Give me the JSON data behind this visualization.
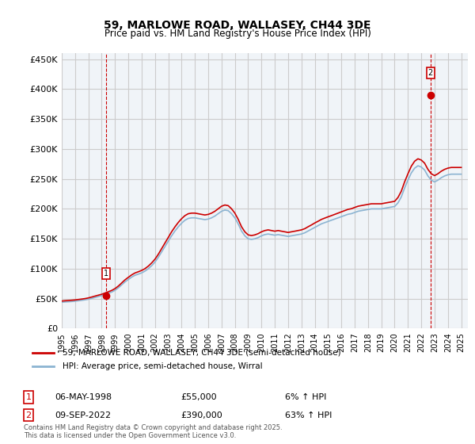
{
  "title": "59, MARLOWE ROAD, WALLASEY, CH44 3DE",
  "subtitle": "Price paid vs. HM Land Registry's House Price Index (HPI)",
  "xlabel": "",
  "ylabel": "",
  "ylim": [
    0,
    460000
  ],
  "xlim_start": 1995.0,
  "xlim_end": 2025.5,
  "yticks": [
    0,
    50000,
    100000,
    150000,
    200000,
    250000,
    300000,
    350000,
    400000,
    450000
  ],
  "ytick_labels": [
    "£0",
    "£50K",
    "£100K",
    "£150K",
    "£200K",
    "£250K",
    "£300K",
    "£350K",
    "£400K",
    "£450K"
  ],
  "xticks": [
    1995,
    1996,
    1997,
    1998,
    1999,
    2000,
    2001,
    2002,
    2003,
    2004,
    2005,
    2006,
    2007,
    2008,
    2009,
    2010,
    2011,
    2012,
    2013,
    2014,
    2015,
    2016,
    2017,
    2018,
    2019,
    2020,
    2021,
    2022,
    2023,
    2024,
    2025
  ],
  "sale1_x": 1998.35,
  "sale1_y": 55000,
  "sale1_label": "1",
  "sale2_x": 2022.69,
  "sale2_y": 390000,
  "sale2_label": "2",
  "line_color_red": "#cc0000",
  "line_color_blue": "#8cb4d2",
  "grid_color": "#cccccc",
  "bg_color": "#ffffff",
  "plot_bg_color": "#f0f4f8",
  "legend_line1": "59, MARLOWE ROAD, WALLASEY, CH44 3DE (semi-detached house)",
  "legend_line2": "HPI: Average price, semi-detached house, Wirral",
  "info1_num": "1",
  "info1_date": "06-MAY-1998",
  "info1_price": "£55,000",
  "info1_hpi": "6% ↑ HPI",
  "info2_num": "2",
  "info2_date": "09-SEP-2022",
  "info2_price": "£390,000",
  "info2_hpi": "63% ↑ HPI",
  "footer": "Contains HM Land Registry data © Crown copyright and database right 2025.\nThis data is licensed under the Open Government Licence v3.0.",
  "hpi_data_x": [
    1995.0,
    1995.25,
    1995.5,
    1995.75,
    1996.0,
    1996.25,
    1996.5,
    1996.75,
    1997.0,
    1997.25,
    1997.5,
    1997.75,
    1998.0,
    1998.25,
    1998.5,
    1998.75,
    1999.0,
    1999.25,
    1999.5,
    1999.75,
    2000.0,
    2000.25,
    2000.5,
    2000.75,
    2001.0,
    2001.25,
    2001.5,
    2001.75,
    2002.0,
    2002.25,
    2002.5,
    2002.75,
    2003.0,
    2003.25,
    2003.5,
    2003.75,
    2004.0,
    2004.25,
    2004.5,
    2004.75,
    2005.0,
    2005.25,
    2005.5,
    2005.75,
    2006.0,
    2006.25,
    2006.5,
    2006.75,
    2007.0,
    2007.25,
    2007.5,
    2007.75,
    2008.0,
    2008.25,
    2008.5,
    2008.75,
    2009.0,
    2009.25,
    2009.5,
    2009.75,
    2010.0,
    2010.25,
    2010.5,
    2010.75,
    2011.0,
    2011.25,
    2011.5,
    2011.75,
    2012.0,
    2012.25,
    2012.5,
    2012.75,
    2013.0,
    2013.25,
    2013.5,
    2013.75,
    2014.0,
    2014.25,
    2014.5,
    2014.75,
    2015.0,
    2015.25,
    2015.5,
    2015.75,
    2016.0,
    2016.25,
    2016.5,
    2016.75,
    2017.0,
    2017.25,
    2017.5,
    2017.75,
    2018.0,
    2018.25,
    2018.5,
    2018.75,
    2019.0,
    2019.25,
    2019.5,
    2019.75,
    2020.0,
    2020.25,
    2020.5,
    2020.75,
    2021.0,
    2021.25,
    2021.5,
    2021.75,
    2022.0,
    2022.25,
    2022.5,
    2022.75,
    2023.0,
    2023.25,
    2023.5,
    2023.75,
    2024.0,
    2024.25,
    2024.5,
    2024.75,
    2025.0
  ],
  "hpi_data_y": [
    44000,
    44500,
    44800,
    45200,
    45800,
    46500,
    47200,
    48000,
    49000,
    50500,
    52000,
    53500,
    55000,
    57000,
    59000,
    61000,
    64000,
    68000,
    73000,
    78000,
    82000,
    86000,
    89000,
    91000,
    93000,
    96000,
    100000,
    105000,
    111000,
    119000,
    128000,
    137000,
    146000,
    155000,
    163000,
    170000,
    176000,
    181000,
    184000,
    185000,
    185000,
    184000,
    183000,
    182000,
    183000,
    185000,
    188000,
    192000,
    196000,
    198000,
    197000,
    192000,
    185000,
    175000,
    163000,
    155000,
    150000,
    149000,
    150000,
    152000,
    155000,
    157000,
    158000,
    157000,
    156000,
    157000,
    156000,
    155000,
    154000,
    155000,
    156000,
    157000,
    158000,
    160000,
    163000,
    166000,
    169000,
    172000,
    175000,
    177000,
    179000,
    181000,
    183000,
    185000,
    187000,
    189000,
    191000,
    192000,
    194000,
    196000,
    197000,
    198000,
    199000,
    200000,
    200000,
    200000,
    200000,
    201000,
    202000,
    203000,
    204000,
    210000,
    220000,
    235000,
    248000,
    260000,
    268000,
    272000,
    270000,
    265000,
    255000,
    248000,
    245000,
    248000,
    252000,
    255000,
    257000,
    258000,
    258000,
    258000,
    258000
  ],
  "red_hpi_x": [
    1995.0,
    1995.25,
    1995.5,
    1995.75,
    1996.0,
    1996.25,
    1996.5,
    1996.75,
    1997.0,
    1997.25,
    1997.5,
    1997.75,
    1998.0,
    1998.25,
    1998.5,
    1998.75,
    1999.0,
    1999.25,
    1999.5,
    1999.75,
    2000.0,
    2000.25,
    2000.5,
    2000.75,
    2001.0,
    2001.25,
    2001.5,
    2001.75,
    2002.0,
    2002.25,
    2002.5,
    2002.75,
    2003.0,
    2003.25,
    2003.5,
    2003.75,
    2004.0,
    2004.25,
    2004.5,
    2004.75,
    2005.0,
    2005.25,
    2005.5,
    2005.75,
    2006.0,
    2006.25,
    2006.5,
    2006.75,
    2007.0,
    2007.25,
    2007.5,
    2007.75,
    2008.0,
    2008.25,
    2008.5,
    2008.75,
    2009.0,
    2009.25,
    2009.5,
    2009.75,
    2010.0,
    2010.25,
    2010.5,
    2010.75,
    2011.0,
    2011.25,
    2011.5,
    2011.75,
    2012.0,
    2012.25,
    2012.5,
    2012.75,
    2013.0,
    2013.25,
    2013.5,
    2013.75,
    2014.0,
    2014.25,
    2014.5,
    2014.75,
    2015.0,
    2015.25,
    2015.5,
    2015.75,
    2016.0,
    2016.25,
    2016.5,
    2016.75,
    2017.0,
    2017.25,
    2017.5,
    2017.75,
    2018.0,
    2018.25,
    2018.5,
    2018.75,
    2019.0,
    2019.25,
    2019.5,
    2019.75,
    2020.0,
    2020.25,
    2020.5,
    2020.75,
    2021.0,
    2021.25,
    2021.5,
    2021.75,
    2022.0,
    2022.25,
    2022.5,
    2022.75,
    2023.0,
    2023.25,
    2023.5,
    2023.75,
    2024.0,
    2024.25,
    2024.5,
    2024.75,
    2025.0
  ],
  "red_hpi_y": [
    46000,
    46500,
    46900,
    47300,
    47800,
    48600,
    49300,
    50100,
    51200,
    52700,
    54300,
    55800,
    57300,
    59400,
    61500,
    63700,
    66800,
    71000,
    76200,
    81400,
    85600,
    89700,
    92900,
    94900,
    97100,
    100100,
    104300,
    109600,
    115900,
    124100,
    133500,
    142900,
    152300,
    161700,
    169900,
    177300,
    183600,
    188700,
    191900,
    192900,
    192900,
    191900,
    190800,
    189800,
    190800,
    192900,
    196000,
    200200,
    204400,
    206500,
    205400,
    200200,
    192900,
    182600,
    170200,
    161700,
    156500,
    155400,
    156500,
    158600,
    161700,
    163800,
    164900,
    163800,
    162700,
    163800,
    162700,
    161700,
    160600,
    161700,
    162700,
    163800,
    164900,
    166900,
    170100,
    173100,
    176400,
    179300,
    182400,
    184600,
    186700,
    188700,
    190800,
    192900,
    195000,
    197100,
    199200,
    200300,
    202400,
    204400,
    205500,
    206500,
    207500,
    208500,
    208500,
    208500,
    208500,
    209600,
    210600,
    211600,
    212600,
    219000,
    229500,
    245200,
    258700,
    271200,
    279600,
    283700,
    281600,
    276400,
    266000,
    258700,
    255600,
    258700,
    262900,
    266000,
    268100,
    269200,
    269200,
    269200,
    269200
  ]
}
